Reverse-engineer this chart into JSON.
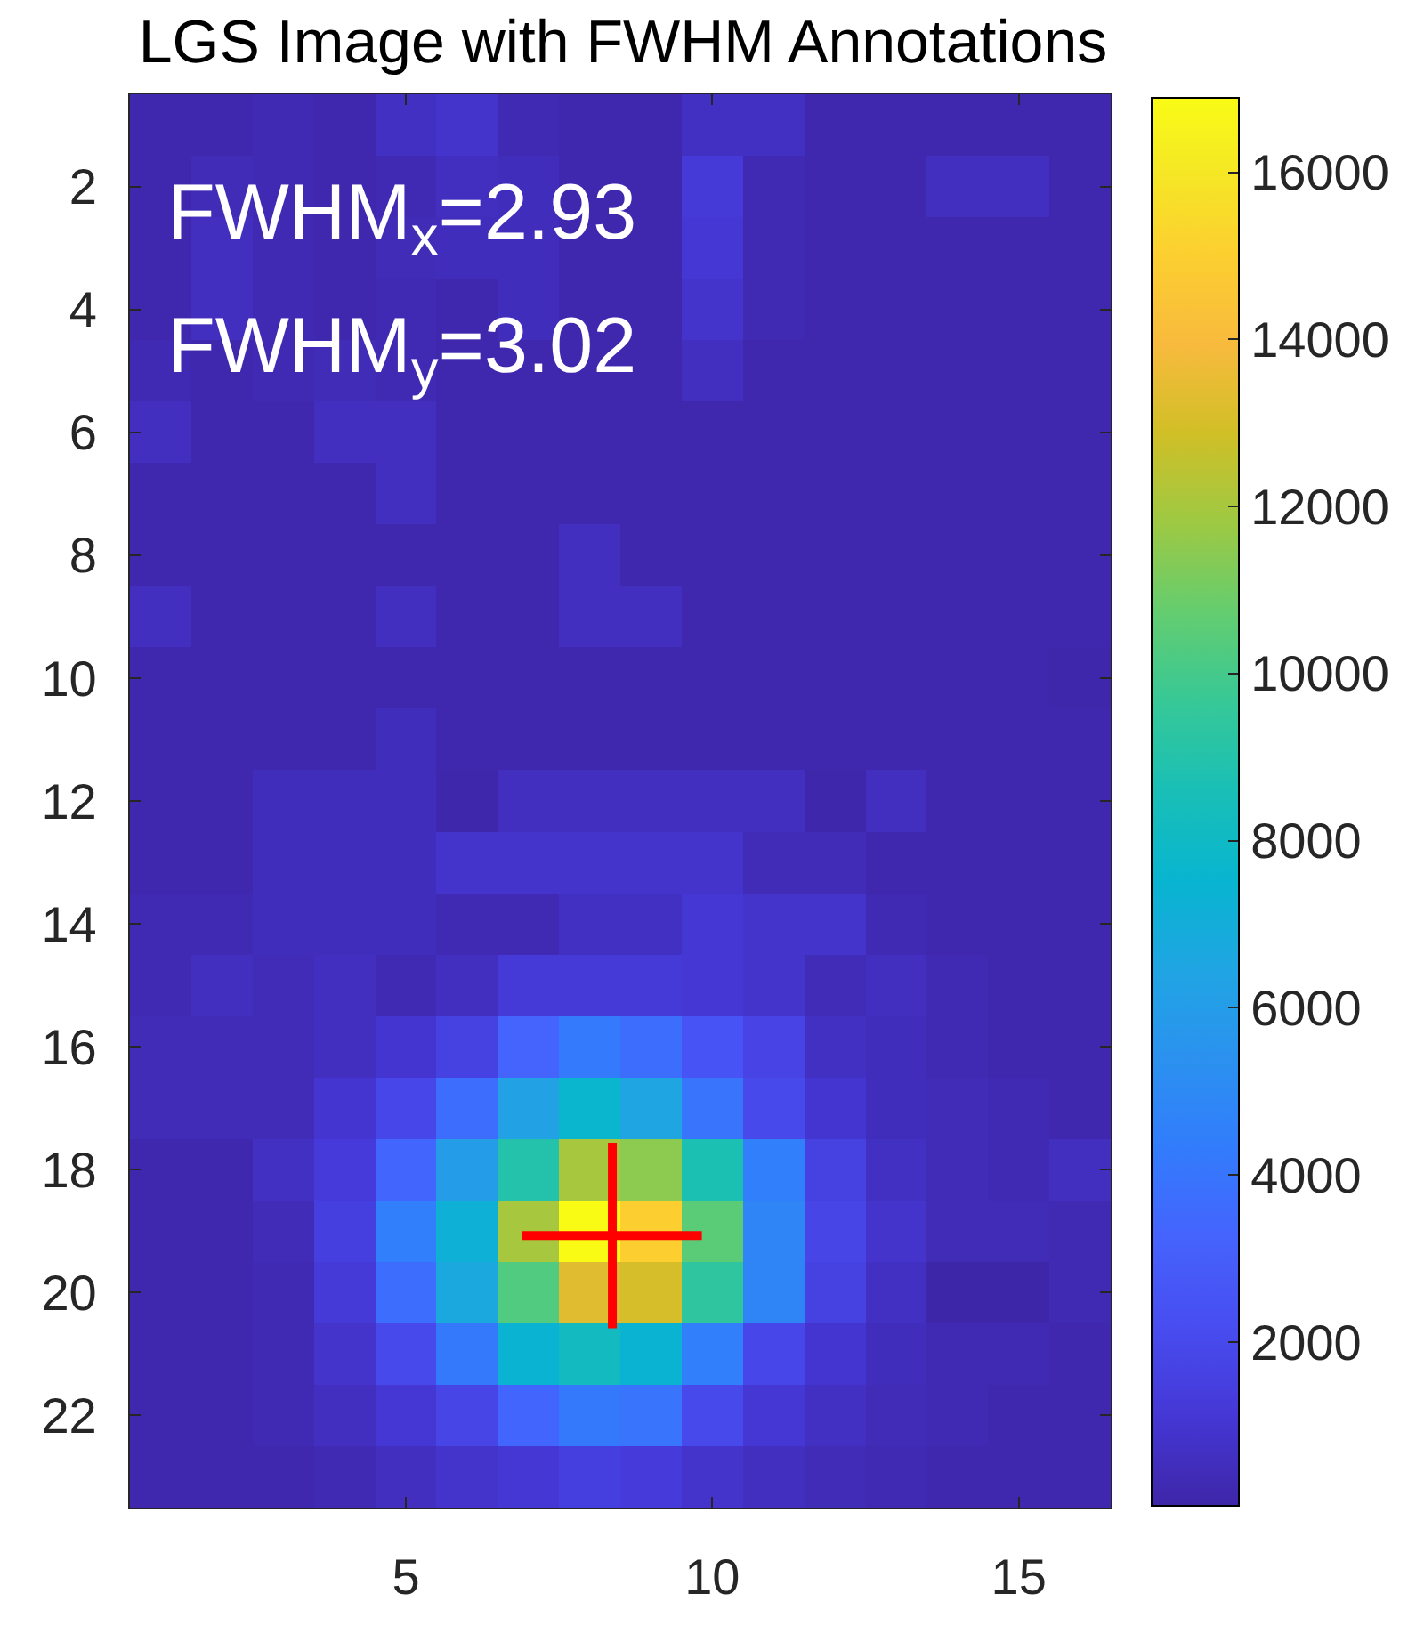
{
  "chart_data": {
    "type": "heatmap",
    "title": "LGS Image with FWHM Annotations",
    "annotations": [
      "FWHM$_{x}$=2.93",
      "FWHM$_{y}$=3.02"
    ],
    "x": [
      1,
      2,
      3,
      4,
      5,
      6,
      7,
      8,
      9,
      10,
      11,
      12,
      13,
      14,
      15,
      16
    ],
    "xlim": [
      0.5,
      16.5
    ],
    "xticks": [
      5,
      10,
      15
    ],
    "ylim": [
      23.5,
      0.5
    ],
    "yticks": [
      2,
      4,
      6,
      8,
      10,
      12,
      14,
      16,
      18,
      20,
      22
    ],
    "clim": [
      50,
      16900
    ],
    "cticks": [
      2000,
      4000,
      6000,
      8000,
      10000,
      12000,
      14000,
      16000
    ],
    "cells": [
      [
        200,
        200,
        300,
        200,
        700,
        900,
        300,
        200,
        200,
        700,
        700,
        200,
        200,
        200,
        200,
        200
      ],
      [
        200,
        400,
        300,
        200,
        300,
        600,
        500,
        200,
        200,
        1200,
        300,
        200,
        200,
        600,
        600,
        200
      ],
      [
        200,
        600,
        300,
        200,
        400,
        500,
        500,
        200,
        200,
        1100,
        300,
        200,
        200,
        200,
        200,
        200
      ],
      [
        200,
        600,
        300,
        200,
        300,
        200,
        500,
        200,
        200,
        900,
        300,
        200,
        200,
        200,
        200,
        200
      ],
      [
        300,
        200,
        300,
        400,
        300,
        200,
        200,
        200,
        200,
        600,
        200,
        200,
        200,
        200,
        200,
        200
      ],
      [
        600,
        200,
        200,
        600,
        600,
        200,
        200,
        200,
        200,
        200,
        200,
        200,
        200,
        200,
        200,
        200
      ],
      [
        200,
        200,
        200,
        200,
        600,
        200,
        200,
        200,
        200,
        200,
        200,
        200,
        200,
        200,
        200,
        200
      ],
      [
        200,
        200,
        200,
        200,
        200,
        200,
        200,
        600,
        200,
        200,
        200,
        200,
        200,
        200,
        200,
        200
      ],
      [
        600,
        200,
        200,
        200,
        600,
        200,
        200,
        600,
        600,
        200,
        200,
        200,
        200,
        200,
        200,
        200
      ],
      [
        200,
        200,
        200,
        200,
        200,
        200,
        200,
        200,
        200,
        200,
        200,
        200,
        200,
        200,
        200,
        100
      ],
      [
        200,
        200,
        200,
        200,
        500,
        200,
        200,
        200,
        200,
        200,
        200,
        200,
        200,
        200,
        200,
        200
      ],
      [
        200,
        200,
        500,
        500,
        500,
        100,
        600,
        600,
        600,
        600,
        600,
        100,
        600,
        200,
        200,
        200
      ],
      [
        200,
        200,
        500,
        500,
        500,
        900,
        900,
        900,
        900,
        900,
        400,
        400,
        200,
        200,
        200,
        200
      ],
      [
        300,
        300,
        500,
        500,
        500,
        300,
        300,
        700,
        700,
        1100,
        900,
        900,
        300,
        200,
        200,
        200
      ],
      [
        300,
        600,
        400,
        600,
        300,
        600,
        1200,
        1200,
        1200,
        1100,
        900,
        400,
        600,
        300,
        200,
        200
      ],
      [
        400,
        400,
        400,
        600,
        1000,
        1600,
        3300,
        4300,
        3700,
        2500,
        1700,
        700,
        500,
        300,
        200,
        200
      ],
      [
        400,
        400,
        400,
        1000,
        1900,
        3700,
        6300,
        7600,
        6500,
        4000,
        2000,
        1000,
        500,
        400,
        300,
        200
      ],
      [
        200,
        200,
        700,
        1300,
        3400,
        6000,
        9000,
        12000,
        11500,
        8700,
        4500,
        1600,
        700,
        400,
        300,
        600
      ],
      [
        200,
        200,
        400,
        1500,
        4500,
        7200,
        12000,
        16900,
        15000,
        10500,
        4800,
        1800,
        900,
        400,
        400,
        300
      ],
      [
        200,
        200,
        300,
        1200,
        3700,
        6700,
        10300,
        13300,
        13000,
        9400,
        4800,
        1600,
        700,
        50,
        50,
        300
      ],
      [
        200,
        200,
        300,
        900,
        2000,
        4200,
        7400,
        8200,
        7400,
        4500,
        1900,
        1000,
        500,
        300,
        300,
        200
      ],
      [
        200,
        200,
        300,
        600,
        1100,
        1800,
        3400,
        4200,
        4000,
        2000,
        1100,
        700,
        400,
        300,
        200,
        200
      ],
      [
        200,
        200,
        200,
        300,
        600,
        900,
        1100,
        1500,
        1300,
        900,
        600,
        400,
        300,
        200,
        200,
        200
      ]
    ],
    "series": [
      {
        "type": "line",
        "color": "#ff0000",
        "x": [
          6.9,
          9.83
        ],
        "values": [
          19.07,
          19.07
        ]
      },
      {
        "type": "line",
        "color": "#ff0000",
        "x": [
          8.37,
          8.37
        ],
        "values": [
          17.56,
          20.58
        ]
      }
    ]
  }
}
